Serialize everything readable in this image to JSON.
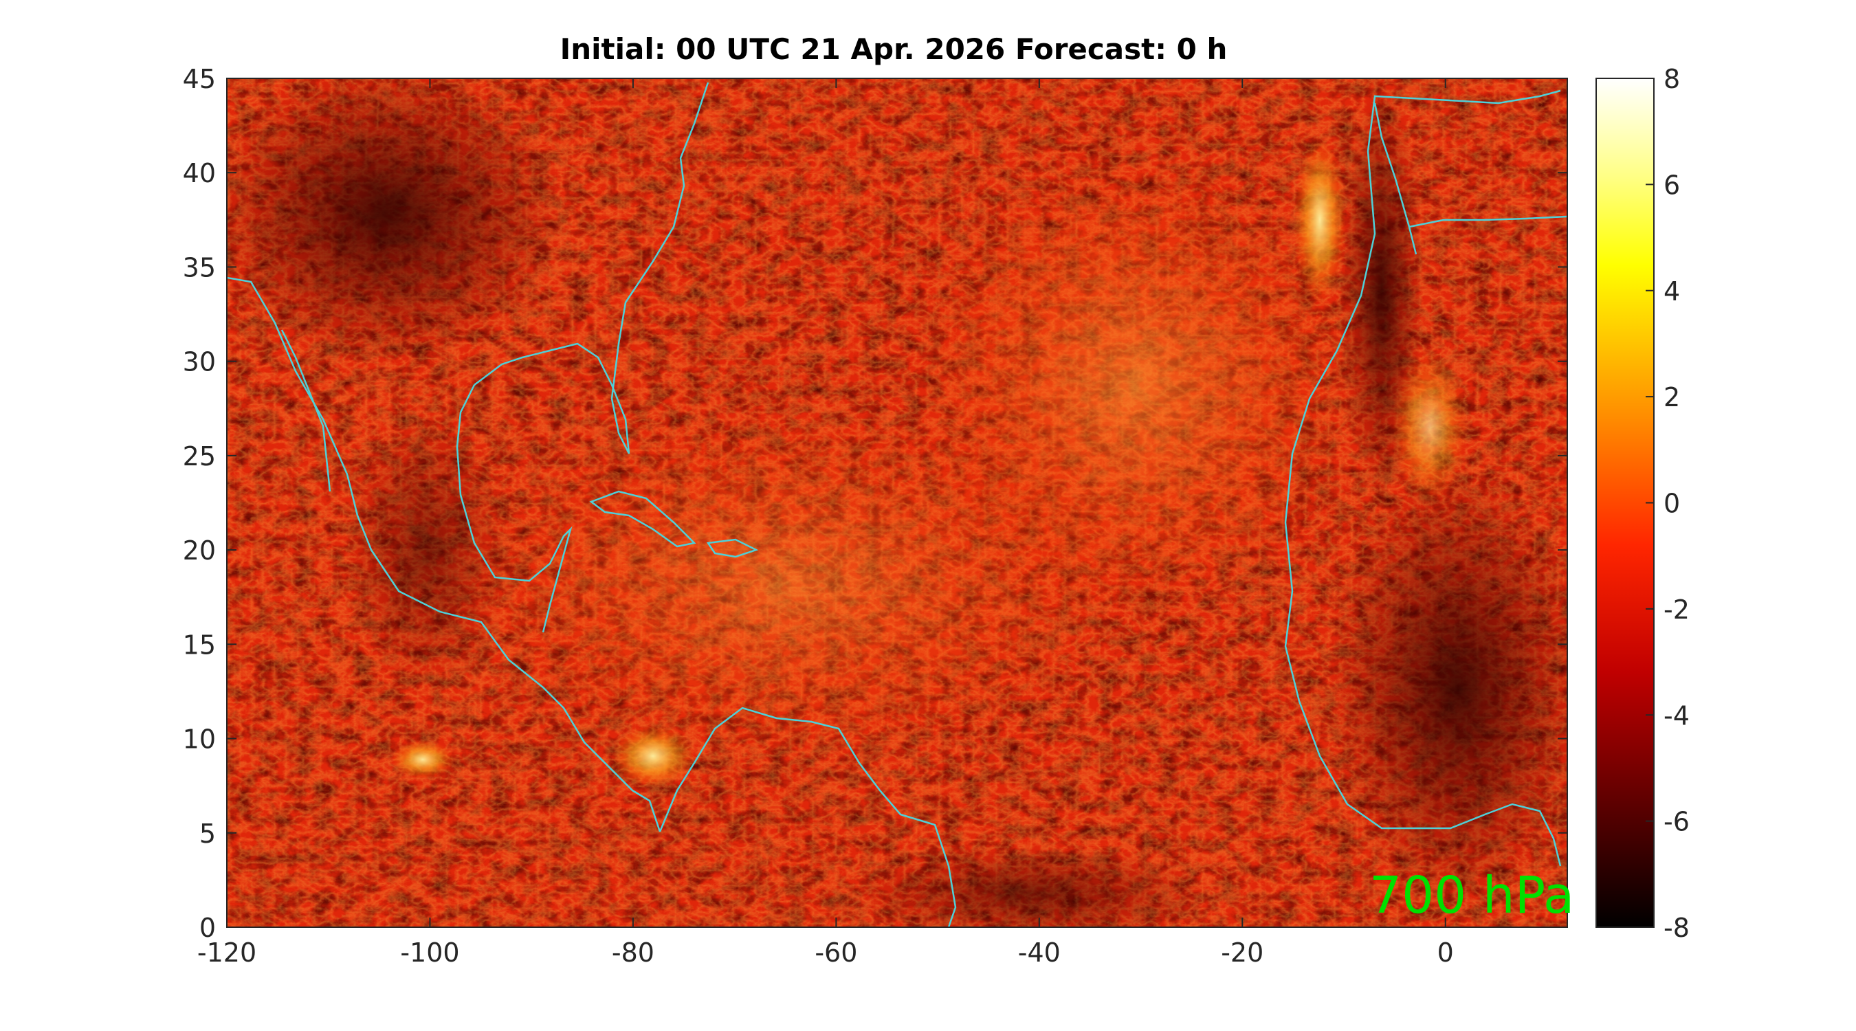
{
  "title": "Initial: 00 UTC 21 Apr. 2026 Forecast: 0 h",
  "level_label": "700 hPa",
  "map": {
    "lon_range": [
      -120,
      12
    ],
    "lat_range": [
      0,
      45
    ],
    "x_ticks": [
      "-120",
      "-100",
      "-80",
      "-60",
      "-40",
      "-20",
      "0"
    ],
    "x_tick_values": [
      -120,
      -100,
      -80,
      -60,
      -40,
      -20,
      0
    ],
    "y_ticks": [
      "0",
      "5",
      "10",
      "15",
      "20",
      "25",
      "30",
      "35",
      "40",
      "45"
    ],
    "y_tick_values": [
      0,
      5,
      10,
      15,
      20,
      25,
      30,
      35,
      40,
      45
    ],
    "coastline_color": "#4fd0d8"
  },
  "colorbar": {
    "colormap": "hot",
    "range": [
      -8,
      8
    ],
    "tick_labels": [
      "8",
      "6",
      "4",
      "2",
      "0",
      "-2",
      "-4",
      "-6",
      "-8"
    ],
    "tick_values": [
      8,
      6,
      4,
      2,
      0,
      -2,
      -4,
      -6,
      -8
    ]
  },
  "colors": {
    "level_label": "#00e000",
    "frame": "#262626"
  }
}
